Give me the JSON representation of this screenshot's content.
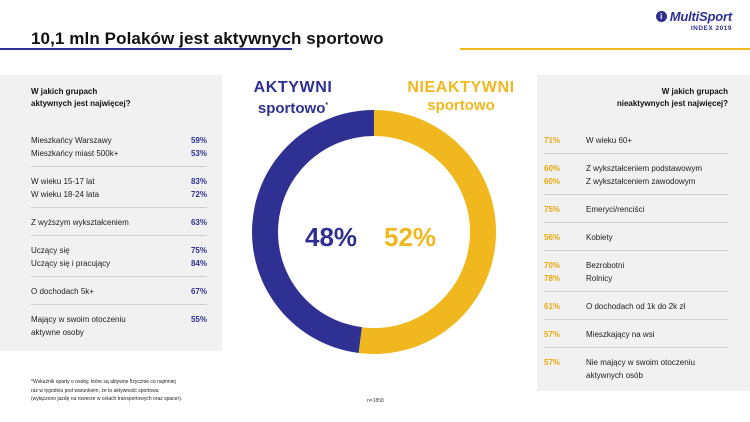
{
  "title": "10,1 mln Polaków jest aktywnych sportowo",
  "logo": {
    "mark": "i",
    "name": "MultiSport",
    "sub": "INDEX 2019"
  },
  "left_panel": {
    "heading_line1": "W jakich grupach",
    "heading_line2": "aktywnych jest najwięcej?",
    "groups": [
      [
        {
          "label": "Mieszkańcy Warszawy",
          "value": "59%"
        },
        {
          "label": "Mieszkańcy miast 500k+",
          "value": "53%"
        }
      ],
      [
        {
          "label": "W wieku 15-17 lat",
          "value": "83%"
        },
        {
          "label": "W wieku 18-24 lata",
          "value": "72%"
        }
      ],
      [
        {
          "label": "Z wyższym wykształceniem",
          "value": "63%"
        }
      ],
      [
        {
          "label": "Uczący się",
          "value": "75%"
        },
        {
          "label": "Uczący się i pracujący",
          "value": "84%"
        }
      ],
      [
        {
          "label": "O dochodach 5k+",
          "value": "67%"
        }
      ],
      [
        {
          "label": "Mający w swoim otoczeniu",
          "value": "55%"
        },
        {
          "label": "aktywne osoby",
          "value": ""
        }
      ]
    ]
  },
  "right_panel": {
    "heading_line1": "W jakich grupach",
    "heading_line2": "nieaktywnych jest najwięcej?",
    "groups": [
      [
        {
          "label": "W wieku 60+",
          "value": "71%"
        }
      ],
      [
        {
          "label": "Z wykształceniem podstawowym",
          "value": "60%"
        },
        {
          "label": "Z wykształceniem zawodowym",
          "value": "60%"
        }
      ],
      [
        {
          "label": "Emeryci/renciści",
          "value": "75%"
        }
      ],
      [
        {
          "label": "Kobiety",
          "value": "56%"
        }
      ],
      [
        {
          "label": "Bezrobotni",
          "value": "70%"
        },
        {
          "label": "Rolnicy",
          "value": "78%"
        }
      ],
      [
        {
          "label": "O dochodach od 1k do 2k zł",
          "value": "61%"
        }
      ],
      [
        {
          "label": "Mieszkający na wsi",
          "value": "57%"
        }
      ],
      [
        {
          "label": "Nie mający w swoim otoczeniu",
          "value": "57%"
        },
        {
          "label": "aktywnych osób",
          "value": ""
        }
      ]
    ]
  },
  "chart_data": {
    "type": "pie",
    "variant": "donut",
    "series": [
      {
        "name": "AKTYWNI sportowo",
        "value": 48,
        "color": "#2e3192"
      },
      {
        "name": "NIEAKTYWNI sportowo",
        "value": 52,
        "color": "#f0b81e"
      }
    ],
    "labels": {
      "active_main": "AKTYWNI",
      "active_sub": "sportowo",
      "active_sup": "*",
      "inactive_main": "NIEAKTYWNI",
      "inactive_sub": "sportowo",
      "active_pct": "48%",
      "inactive_pct": "52%"
    }
  },
  "footnote_lines": [
    "*Wskaźnik oparty o osoby, które są aktywne fizycznie co najmniej",
    "raz w tygodniu pod warunkiem, że to aktywność sportowa",
    "(wyłączono jazdę na rowerze w celach transportowych oraz spacer)."
  ],
  "sample_size": "n=1858"
}
